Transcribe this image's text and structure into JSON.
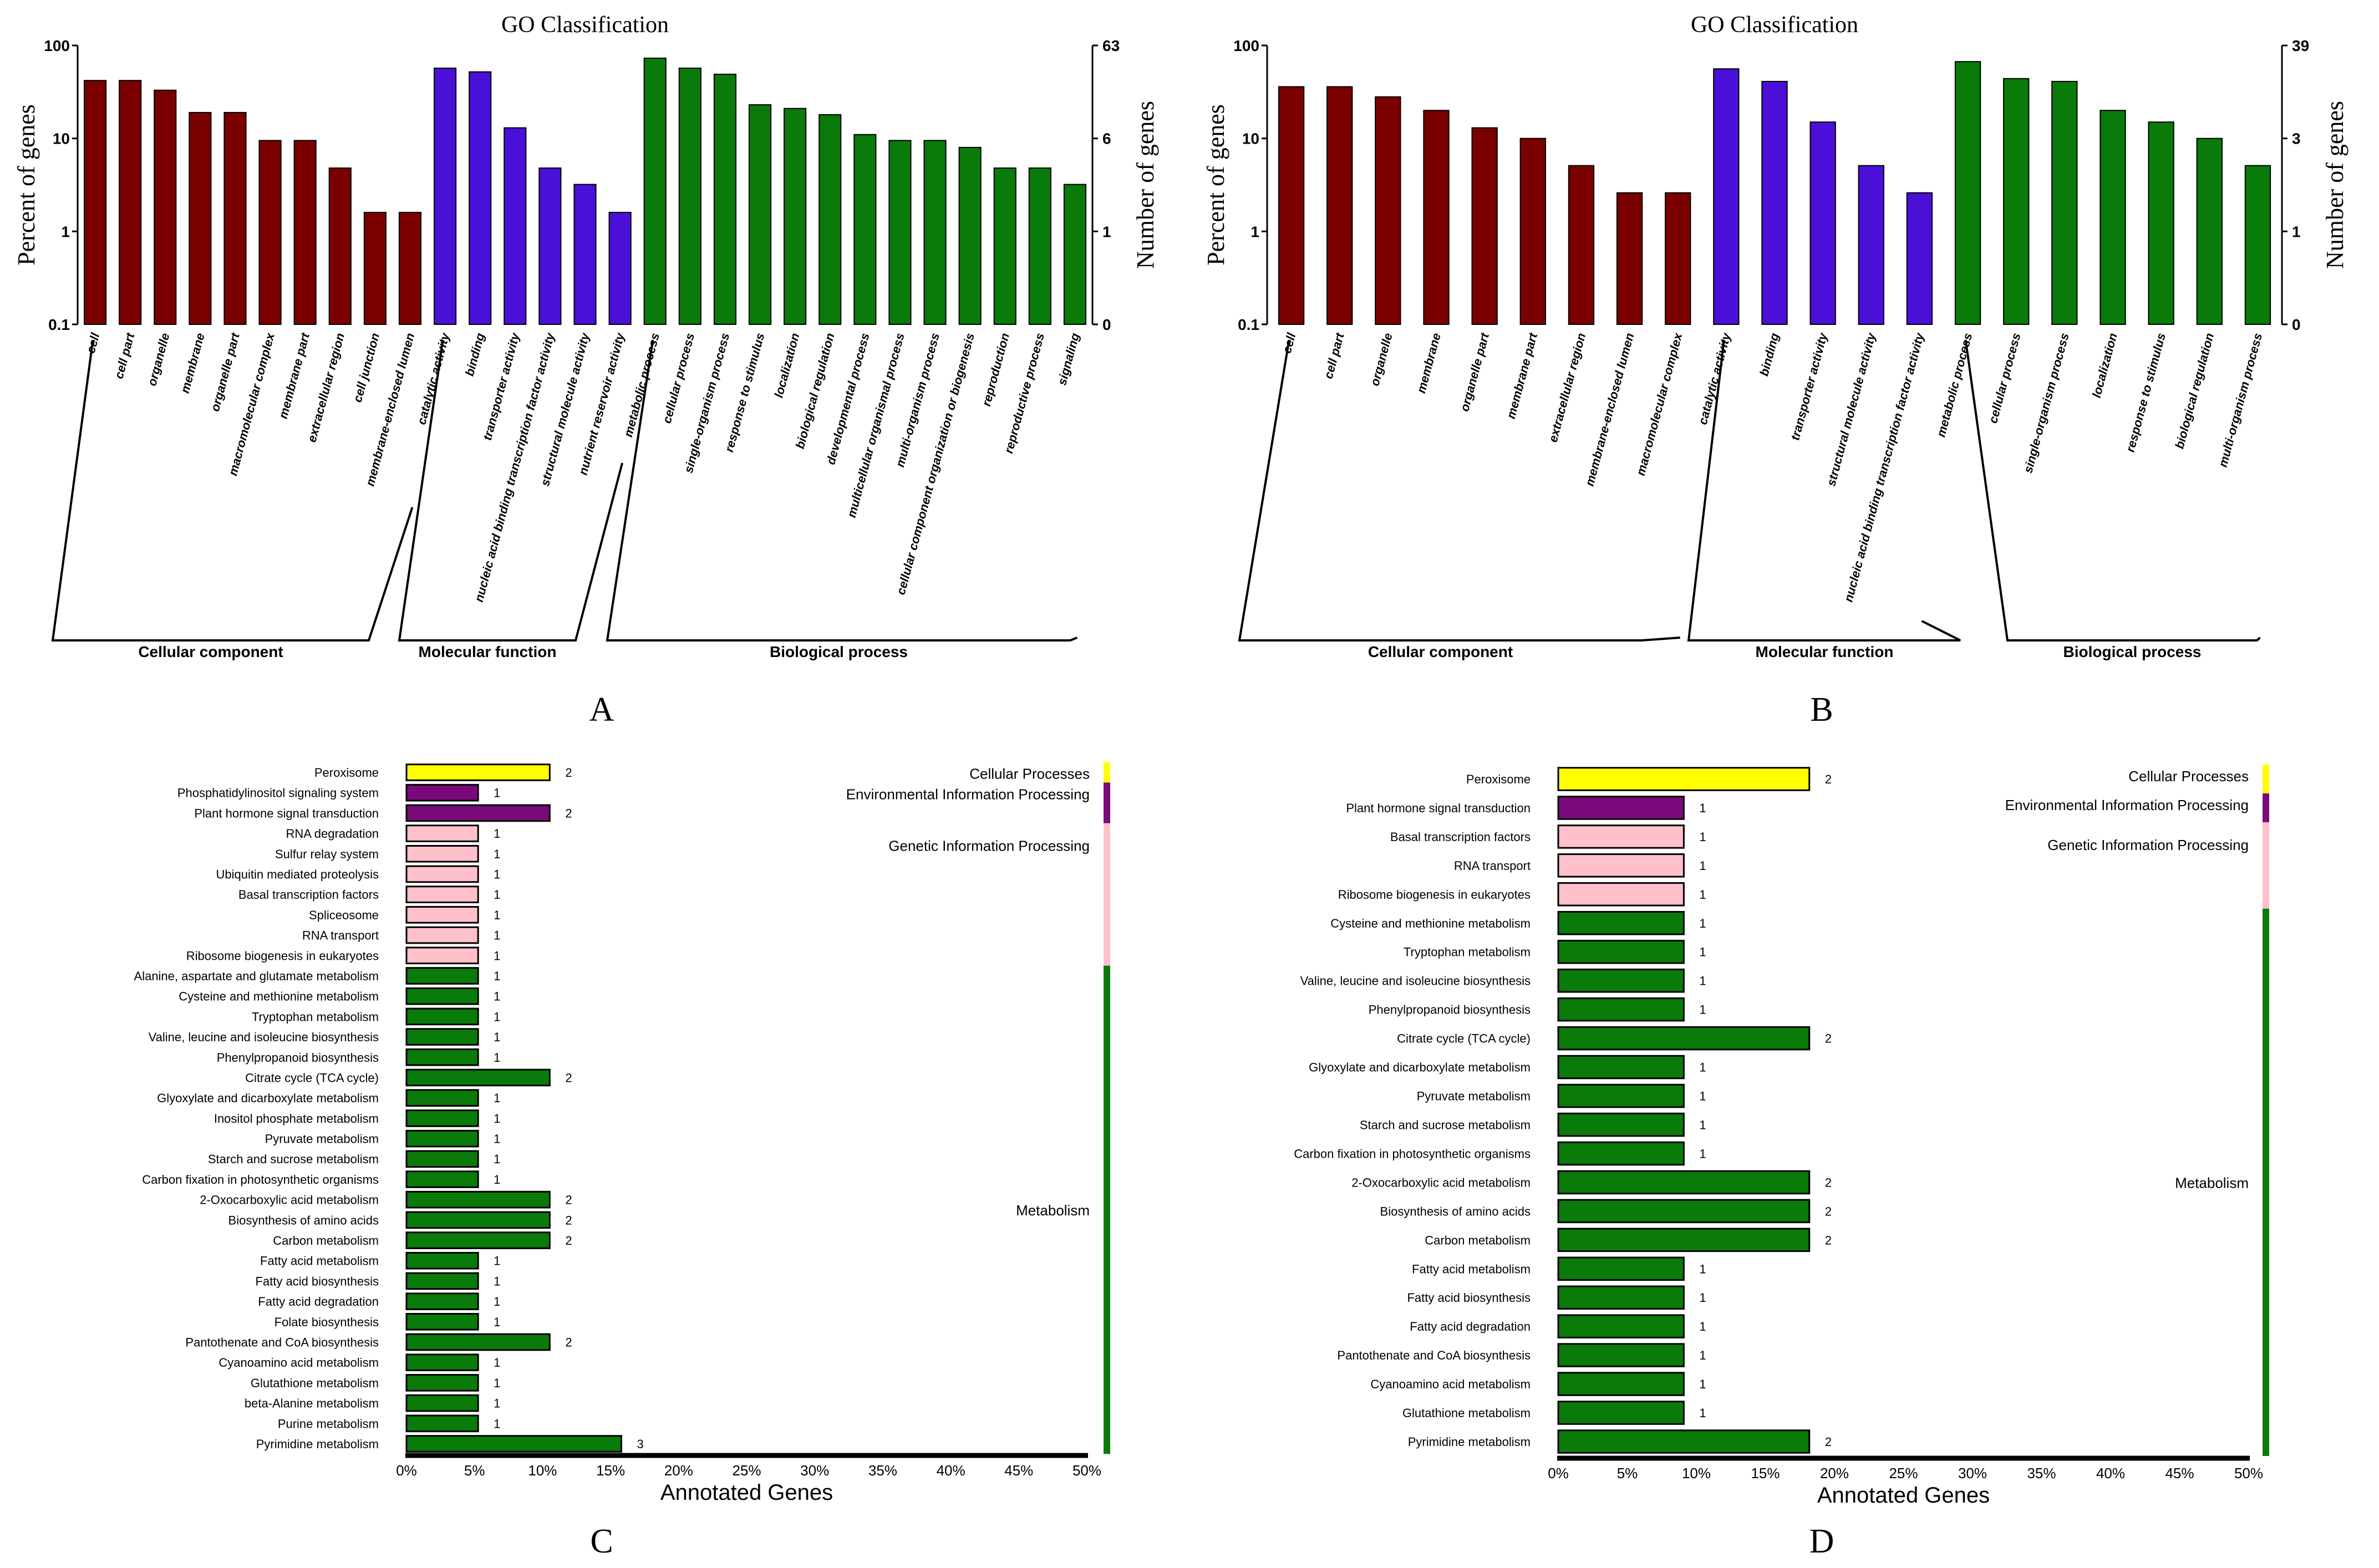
{
  "colors": {
    "cellular": "#7a0000",
    "molecular": "#4a10d8",
    "biological": "#0a7a0a",
    "cellular_processes": "#ffff00",
    "environmental": "#7a0a7a",
    "genetic": "#ffc0cb",
    "metabolism": "#0a7a0a"
  },
  "chart_data": [
    {
      "panel": "A",
      "type": "bar",
      "title": "GO Classification",
      "ylabel": "Percent of genes",
      "ylabel_right": "Number of genes",
      "yscale": "log",
      "ylim": [
        0.1,
        100
      ],
      "yticks": [
        "100",
        "10",
        "1",
        "0.1"
      ],
      "yticks_right": [
        "63",
        "6",
        "1",
        "0"
      ],
      "groups": [
        {
          "name": "Cellular component",
          "key": "cellular",
          "categories": [
            "cell",
            "cell part",
            "organelle",
            "membrane",
            "organelle part",
            "macromolecular complex",
            "membrane part",
            "extracellular region",
            "cell junction",
            "membrane-enclosed lumen"
          ],
          "values": [
            42,
            42,
            33,
            19,
            19,
            9.5,
            9.5,
            4.8,
            1.6,
            1.6
          ]
        },
        {
          "name": "Molecular function",
          "key": "molecular",
          "categories": [
            "catalytic activity",
            "binding",
            "transporter activity",
            "nucleic acid binding transcription factor activity",
            "structural molecule activity",
            "nutrient reservoir activity"
          ],
          "values": [
            57,
            52,
            13,
            4.8,
            3.2,
            1.6
          ]
        },
        {
          "name": "Biological process",
          "key": "biological",
          "categories": [
            "metabolic process",
            "cellular process",
            "single-organism process",
            "response to stimulus",
            "localization",
            "biological regulation",
            "developmental process",
            "multicellular organismal process",
            "multi-organism process",
            "cellular component organization or biogenesis",
            "reproduction",
            "reproductive process",
            "signaling"
          ],
          "values": [
            73,
            57,
            49,
            23,
            21,
            18,
            11,
            9.5,
            9.5,
            8,
            4.8,
            4.8,
            3.2
          ]
        }
      ],
      "caption": "A"
    },
    {
      "panel": "B",
      "type": "bar",
      "title": "GO Classification",
      "ylabel": "Percent of genes",
      "ylabel_right": "Number of genes",
      "yscale": "log",
      "ylim": [
        0.1,
        100
      ],
      "yticks": [
        "100",
        "10",
        "1",
        "0.1"
      ],
      "yticks_right": [
        "39",
        "3",
        "1",
        "0"
      ],
      "groups": [
        {
          "name": "Cellular component",
          "key": "cellular",
          "categories": [
            "cell",
            "cell part",
            "organelle",
            "membrane",
            "organelle part",
            "membrane part",
            "extracellular region",
            "membrane-enclosed lumen",
            "macromolecular complex"
          ],
          "values": [
            36,
            36,
            28,
            20,
            13,
            10,
            5.1,
            2.6,
            2.6
          ]
        },
        {
          "name": "Molecular function",
          "key": "molecular",
          "categories": [
            "catalytic activity",
            "binding",
            "transporter activity",
            "structural molecule activity",
            "nucleic acid binding transcription factor activity"
          ],
          "values": [
            56,
            41,
            15,
            5.1,
            2.6
          ]
        },
        {
          "name": "Biological process",
          "key": "biological",
          "categories": [
            "metabolic process",
            "cellular process",
            "single-organism process",
            "localization",
            "response to stimulus",
            "biological regulation",
            "multi-organism process"
          ],
          "values": [
            67,
            44,
            41,
            20,
            15,
            10,
            5.1
          ]
        }
      ],
      "caption": "B"
    },
    {
      "panel": "C",
      "type": "bar",
      "orientation": "horizontal",
      "xlabel": "Annotated Genes",
      "xlim": [
        0,
        50
      ],
      "xticks": [
        "0%",
        "5%",
        "10%",
        "15%",
        "20%",
        "25%",
        "30%",
        "35%",
        "40%",
        "45%",
        "50%"
      ],
      "total_genes": 19,
      "items": [
        {
          "label": "Peroxisome",
          "count": 2,
          "group": "cellular_processes"
        },
        {
          "label": "Phosphatidylinositol signaling system",
          "count": 1,
          "group": "environmental"
        },
        {
          "label": "Plant hormone signal transduction",
          "count": 2,
          "group": "environmental"
        },
        {
          "label": "RNA degradation",
          "count": 1,
          "group": "genetic"
        },
        {
          "label": "Sulfur relay system",
          "count": 1,
          "group": "genetic"
        },
        {
          "label": "Ubiquitin mediated proteolysis",
          "count": 1,
          "group": "genetic"
        },
        {
          "label": "Basal transcription factors",
          "count": 1,
          "group": "genetic"
        },
        {
          "label": "Spliceosome",
          "count": 1,
          "group": "genetic"
        },
        {
          "label": "RNA transport",
          "count": 1,
          "group": "genetic"
        },
        {
          "label": "Ribosome biogenesis in eukaryotes",
          "count": 1,
          "group": "genetic"
        },
        {
          "label": "Alanine, aspartate and glutamate metabolism",
          "count": 1,
          "group": "metabolism"
        },
        {
          "label": "Cysteine and methionine metabolism",
          "count": 1,
          "group": "metabolism"
        },
        {
          "label": "Tryptophan metabolism",
          "count": 1,
          "group": "metabolism"
        },
        {
          "label": "Valine, leucine and isoleucine biosynthesis",
          "count": 1,
          "group": "metabolism"
        },
        {
          "label": "Phenylpropanoid biosynthesis",
          "count": 1,
          "group": "metabolism"
        },
        {
          "label": "Citrate cycle (TCA cycle)",
          "count": 2,
          "group": "metabolism"
        },
        {
          "label": "Glyoxylate and dicarboxylate metabolism",
          "count": 1,
          "group": "metabolism"
        },
        {
          "label": "Inositol phosphate metabolism",
          "count": 1,
          "group": "metabolism"
        },
        {
          "label": "Pyruvate metabolism",
          "count": 1,
          "group": "metabolism"
        },
        {
          "label": "Starch and sucrose metabolism",
          "count": 1,
          "group": "metabolism"
        },
        {
          "label": "Carbon fixation in photosynthetic organisms",
          "count": 1,
          "group": "metabolism"
        },
        {
          "label": "2-Oxocarboxylic acid metabolism",
          "count": 2,
          "group": "metabolism"
        },
        {
          "label": "Biosynthesis of amino acids",
          "count": 2,
          "group": "metabolism"
        },
        {
          "label": "Carbon metabolism",
          "count": 2,
          "group": "metabolism"
        },
        {
          "label": "Fatty acid metabolism",
          "count": 1,
          "group": "metabolism"
        },
        {
          "label": "Fatty acid biosynthesis",
          "count": 1,
          "group": "metabolism"
        },
        {
          "label": "Fatty acid degradation",
          "count": 1,
          "group": "metabolism"
        },
        {
          "label": "Folate biosynthesis",
          "count": 1,
          "group": "metabolism"
        },
        {
          "label": "Pantothenate and CoA biosynthesis",
          "count": 2,
          "group": "metabolism"
        },
        {
          "label": "Cyanoamino acid metabolism",
          "count": 1,
          "group": "metabolism"
        },
        {
          "label": "Glutathione metabolism",
          "count": 1,
          "group": "metabolism"
        },
        {
          "label": "beta-Alanine metabolism",
          "count": 1,
          "group": "metabolism"
        },
        {
          "label": "Purine metabolism",
          "count": 1,
          "group": "metabolism"
        },
        {
          "label": "Pyrimidine metabolism",
          "count": 3,
          "group": "metabolism"
        }
      ],
      "legend": [
        {
          "key": "cellular_processes",
          "label": "Cellular Processes"
        },
        {
          "key": "environmental",
          "label": "Environmental Information Processing"
        },
        {
          "key": "genetic",
          "label": "Genetic Information Processing"
        },
        {
          "key": "metabolism",
          "label": "Metabolism"
        }
      ],
      "caption": "C"
    },
    {
      "panel": "D",
      "type": "bar",
      "orientation": "horizontal",
      "xlabel": "Annotated Genes",
      "xlim": [
        0,
        50
      ],
      "xticks": [
        "0%",
        "5%",
        "10%",
        "15%",
        "20%",
        "25%",
        "30%",
        "35%",
        "40%",
        "45%",
        "50%"
      ],
      "total_genes": 11,
      "items": [
        {
          "label": "Peroxisome",
          "count": 2,
          "group": "cellular_processes"
        },
        {
          "label": "Plant hormone signal transduction",
          "count": 1,
          "group": "environmental"
        },
        {
          "label": "Basal transcription factors",
          "count": 1,
          "group": "genetic"
        },
        {
          "label": "RNA transport",
          "count": 1,
          "group": "genetic"
        },
        {
          "label": "Ribosome biogenesis in eukaryotes",
          "count": 1,
          "group": "genetic"
        },
        {
          "label": "Cysteine and methionine metabolism",
          "count": 1,
          "group": "metabolism"
        },
        {
          "label": "Tryptophan metabolism",
          "count": 1,
          "group": "metabolism"
        },
        {
          "label": "Valine, leucine and isoleucine biosynthesis",
          "count": 1,
          "group": "metabolism"
        },
        {
          "label": "Phenylpropanoid biosynthesis",
          "count": 1,
          "group": "metabolism"
        },
        {
          "label": "Citrate cycle (TCA cycle)",
          "count": 2,
          "group": "metabolism"
        },
        {
          "label": "Glyoxylate and dicarboxylate metabolism",
          "count": 1,
          "group": "metabolism"
        },
        {
          "label": "Pyruvate metabolism",
          "count": 1,
          "group": "metabolism"
        },
        {
          "label": "Starch and sucrose metabolism",
          "count": 1,
          "group": "metabolism"
        },
        {
          "label": "Carbon fixation in photosynthetic organisms",
          "count": 1,
          "group": "metabolism"
        },
        {
          "label": "2-Oxocarboxylic acid metabolism",
          "count": 2,
          "group": "metabolism"
        },
        {
          "label": "Biosynthesis of amino acids",
          "count": 2,
          "group": "metabolism"
        },
        {
          "label": "Carbon metabolism",
          "count": 2,
          "group": "metabolism"
        },
        {
          "label": "Fatty acid metabolism",
          "count": 1,
          "group": "metabolism"
        },
        {
          "label": "Fatty acid biosynthesis",
          "count": 1,
          "group": "metabolism"
        },
        {
          "label": "Fatty acid degradation",
          "count": 1,
          "group": "metabolism"
        },
        {
          "label": "Pantothenate and CoA biosynthesis",
          "count": 1,
          "group": "metabolism"
        },
        {
          "label": "Cyanoamino acid metabolism",
          "count": 1,
          "group": "metabolism"
        },
        {
          "label": "Glutathione metabolism",
          "count": 1,
          "group": "metabolism"
        },
        {
          "label": "Pyrimidine metabolism",
          "count": 2,
          "group": "metabolism"
        }
      ],
      "legend": [
        {
          "key": "cellular_processes",
          "label": "Cellular Processes"
        },
        {
          "key": "environmental",
          "label": "Environmental Information Processing"
        },
        {
          "key": "genetic",
          "label": "Genetic Information Processing"
        },
        {
          "key": "metabolism",
          "label": "Metabolism"
        }
      ],
      "caption": "D"
    }
  ]
}
